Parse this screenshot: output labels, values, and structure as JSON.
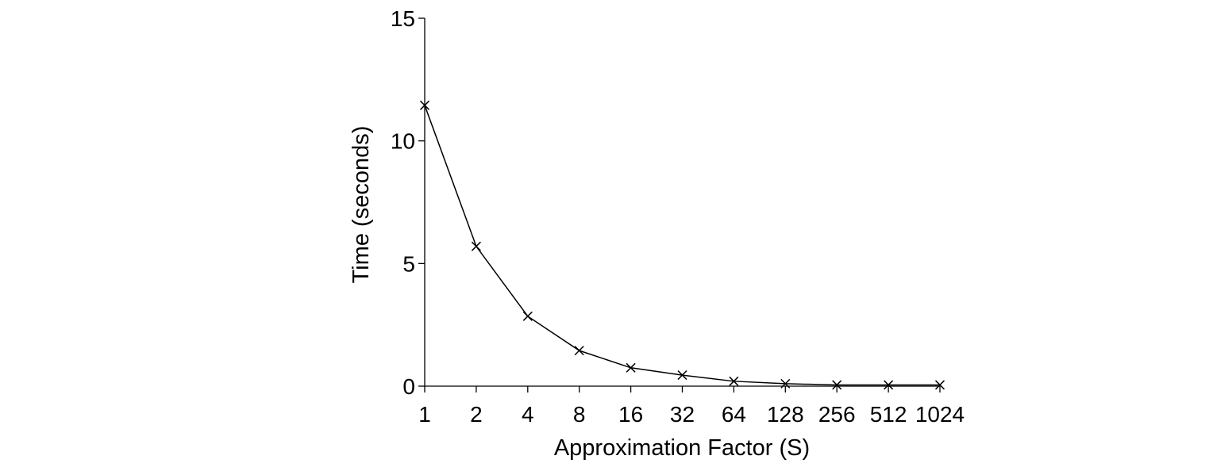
{
  "chart_data": {
    "type": "line",
    "xlabel": "Approximation Factor (S)",
    "ylabel": "Time (seconds)",
    "x_scale": "log2",
    "categories": [
      "1",
      "2",
      "4",
      "8",
      "16",
      "32",
      "64",
      "128",
      "256",
      "512",
      "1024"
    ],
    "x": [
      1,
      2,
      4,
      8,
      16,
      32,
      64,
      128,
      256,
      512,
      1024
    ],
    "y_ticks": [
      "0",
      "5",
      "10",
      "15"
    ],
    "ylim": [
      0,
      15
    ],
    "grid": false,
    "legend": "none",
    "series": [
      {
        "marker": "x",
        "color": "#000000",
        "values": [
          11.45,
          5.7,
          2.85,
          1.45,
          0.75,
          0.45,
          0.2,
          0.1,
          0.05,
          0.05,
          0.05
        ]
      }
    ]
  }
}
